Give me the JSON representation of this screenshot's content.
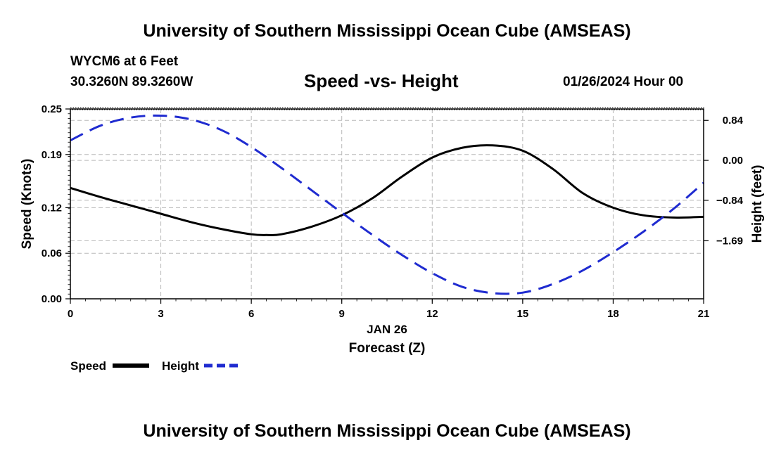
{
  "header": {
    "title": "University of Southern Mississippi Ocean Cube (AMSEAS)",
    "station": "WYCM6 at 6 Feet",
    "coords": "30.3260N  89.3260W",
    "subtitle": "Speed -vs- Height",
    "datetime": "01/26/2024 Hour 00"
  },
  "footer": {
    "title": "University of Southern Mississippi Ocean Cube (AMSEAS)"
  },
  "chart_data": {
    "type": "line",
    "title": "Speed -vs- Height",
    "xlabel": "Forecast (Z)",
    "xdate": "JAN 26",
    "ylabel_left": "Speed (Knots)",
    "ylabel_right": "Height (feet)",
    "xlim": [
      0,
      21
    ],
    "xticks": [
      "0",
      "3",
      "6",
      "9",
      "12",
      "15",
      "18",
      "21"
    ],
    "ylim_left": [
      0,
      0.25
    ],
    "yticks_left": [
      "0.00",
      "0.06",
      "0.12",
      "0.19",
      "0.25"
    ],
    "ylim_right": [
      -2.91,
      1.08
    ],
    "yticks_right": [
      "0.84",
      "0.00",
      "−0.84",
      "−1.69"
    ],
    "grid": true,
    "legend": [
      {
        "name": "Speed",
        "color": "#000000",
        "style": "solid"
      },
      {
        "name": "Height",
        "color": "#1f2bd0",
        "style": "dashed"
      }
    ],
    "series": [
      {
        "name": "Speed",
        "axis": "left",
        "color": "#000000",
        "x": [
          0,
          1,
          2,
          3,
          4,
          5,
          6,
          6.5,
          7,
          8,
          9,
          10,
          11,
          12,
          13,
          14,
          15,
          16,
          17,
          18,
          19,
          20,
          21
        ],
        "values": [
          0.146,
          0.134,
          0.123,
          0.112,
          0.101,
          0.092,
          0.085,
          0.084,
          0.085,
          0.095,
          0.11,
          0.132,
          0.161,
          0.186,
          0.199,
          0.202,
          0.195,
          0.171,
          0.139,
          0.12,
          0.11,
          0.107,
          0.108
        ]
      },
      {
        "name": "Height",
        "axis": "right",
        "color": "#1f2bd0",
        "x": [
          0,
          1,
          2,
          3,
          4,
          5,
          6,
          7,
          8,
          9,
          10,
          11,
          12,
          13,
          14,
          15,
          16,
          17,
          18,
          19,
          20,
          21
        ],
        "values": [
          0.42,
          0.73,
          0.9,
          0.94,
          0.86,
          0.64,
          0.28,
          -0.16,
          -0.63,
          -1.1,
          -1.56,
          -1.99,
          -2.37,
          -2.66,
          -2.79,
          -2.78,
          -2.6,
          -2.31,
          -1.93,
          -1.5,
          -1.02,
          -0.47
        ]
      }
    ]
  }
}
